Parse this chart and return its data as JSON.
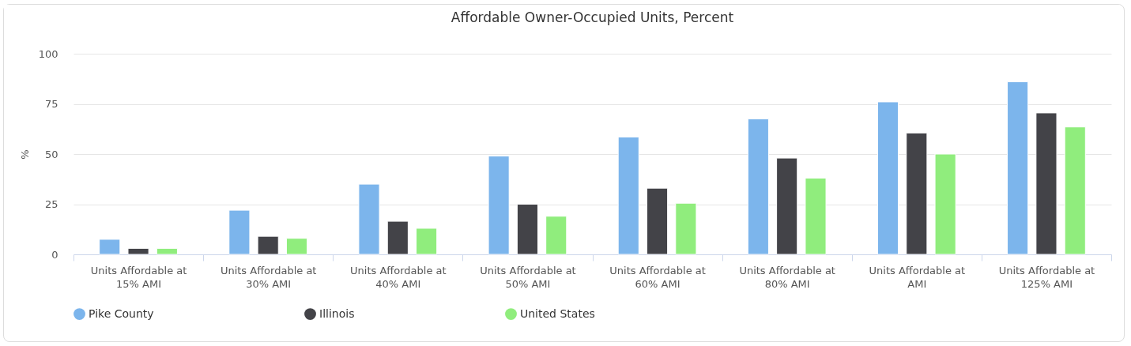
{
  "chart_data": {
    "type": "bar",
    "title": "Affordable Owner-Occupied Units, Percent",
    "ylabel": "%",
    "categories": [
      "Units Affordable at 15% AMI",
      "Units Affordable at 30% AMI",
      "Units Affordable at 40% AMI",
      "Units Affordable at 50% AMI",
      "Units Affordable at 60% AMI",
      "Units Affordable at 80% AMI",
      "Units Affordable at AMI",
      "Units Affordable at 125% AMI"
    ],
    "series": [
      {
        "name": "Pike County",
        "color": "#7cb5ec",
        "values": [
          7.5,
          22,
          35,
          49,
          58.5,
          67.5,
          76,
          86
        ]
      },
      {
        "name": "Illinois",
        "color": "#434348",
        "values": [
          3,
          9,
          16.5,
          25,
          33,
          48,
          60.5,
          70.5
        ]
      },
      {
        "name": "United States",
        "color": "#90ed7d",
        "values": [
          3,
          8,
          13,
          19,
          25.5,
          38,
          50,
          63.5
        ]
      }
    ],
    "ylim": [
      0,
      100
    ],
    "yticks": [
      0,
      25,
      50,
      75,
      100
    ],
    "grid": "y",
    "legend": "bottom"
  }
}
